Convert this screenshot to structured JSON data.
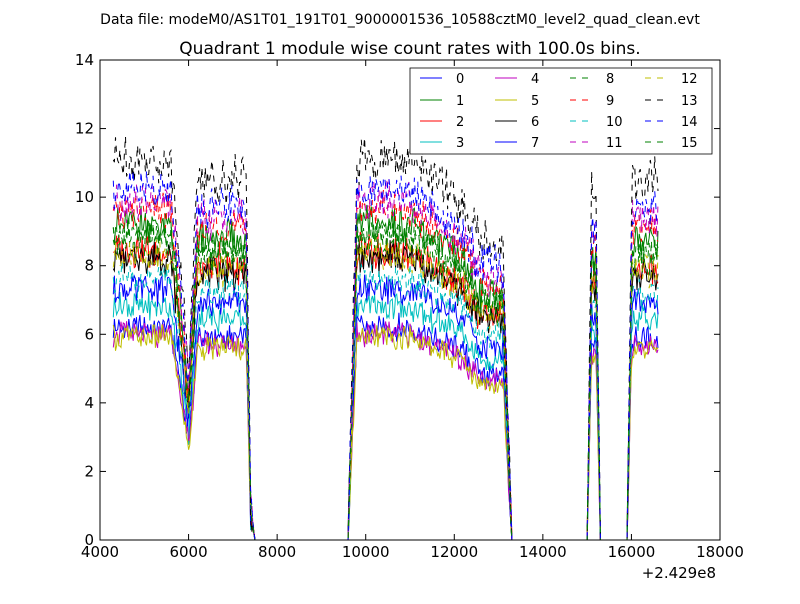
{
  "figure": {
    "suptitle": "Data file: modeM0/AS1T01_191T01_9000001536_10588cztM0_level2_quad_clean.evt",
    "title": "Quadrant 1 module wise count rates with 100.0s bins.",
    "x_offset_label": "+2.429e8"
  },
  "chart_data": {
    "type": "line",
    "title": "Quadrant 1 module wise count rates with 100.0s bins.",
    "xlabel": "",
    "ylabel": "",
    "x_offset": "+2.429e8",
    "xlim": [
      4000,
      18000
    ],
    "ylim": [
      0,
      14
    ],
    "x_ticks": [
      4000,
      6000,
      8000,
      10000,
      12000,
      14000,
      16000,
      18000
    ],
    "y_ticks": [
      0,
      2,
      4,
      6,
      8,
      10,
      12,
      14
    ],
    "grid": false,
    "legend_position": "top-right",
    "legend_columns": 4,
    "segments": [
      [
        4300,
        7600
      ],
      [
        9600,
        13300
      ],
      [
        15000,
        15300
      ],
      [
        15900,
        16600
      ]
    ],
    "base_x": [
      4300,
      4400,
      4500,
      4600,
      4700,
      4800,
      4900,
      5000,
      5100,
      5200,
      5300,
      5400,
      5500,
      5600,
      5700,
      5800,
      5900,
      6000,
      6100,
      6200,
      6300,
      6400,
      6500,
      6600,
      6700,
      6800,
      6900,
      7000,
      7100,
      7200,
      7300,
      7400,
      7500,
      7600,
      9600,
      9700,
      9800,
      9900,
      10000,
      10100,
      10200,
      10300,
      10400,
      10500,
      10600,
      10700,
      10800,
      10900,
      11000,
      11100,
      11200,
      11300,
      11400,
      11500,
      11600,
      11700,
      11800,
      11900,
      12000,
      12100,
      12200,
      12300,
      12400,
      12500,
      12600,
      12700,
      12800,
      12900,
      13000,
      13100,
      13200,
      13300,
      15000,
      15100,
      15200,
      15300,
      15900,
      16000,
      16100,
      16200,
      16300,
      16400,
      16500,
      16600
    ],
    "series": [
      {
        "name": "0",
        "color": "#0000ff",
        "style": "solid",
        "level": 6.2
      },
      {
        "name": "1",
        "color": "#008000",
        "style": "solid",
        "level": 9.2
      },
      {
        "name": "2",
        "color": "#ff0000",
        "style": "solid",
        "level": 8.4
      },
      {
        "name": "3",
        "color": "#00bfbf",
        "style": "solid",
        "level": 6.8
      },
      {
        "name": "4",
        "color": "#bf00bf",
        "style": "solid",
        "level": 6.0
      },
      {
        "name": "5",
        "color": "#bfbf00",
        "style": "solid",
        "level": 5.9
      },
      {
        "name": "6",
        "color": "#000000",
        "style": "solid",
        "level": 8.2
      },
      {
        "name": "7",
        "color": "#0000ff",
        "style": "solid",
        "level": 7.3
      },
      {
        "name": "8",
        "color": "#008000",
        "style": "dashed",
        "level": 8.7
      },
      {
        "name": "9",
        "color": "#ff0000",
        "style": "dashed",
        "level": 9.6
      },
      {
        "name": "10",
        "color": "#00bfbf",
        "style": "dashed",
        "level": 7.6
      },
      {
        "name": "11",
        "color": "#bf00bf",
        "style": "dashed",
        "level": 9.9
      },
      {
        "name": "12",
        "color": "#bfbf00",
        "style": "dashed",
        "level": 8.3
      },
      {
        "name": "13",
        "color": "#000000",
        "style": "dashed",
        "level": 11.1
      },
      {
        "name": "14",
        "color": "#0000ff",
        "style": "dashed",
        "level": 10.2
      },
      {
        "name": "15",
        "color": "#008000",
        "style": "dashed",
        "level": 8.9
      }
    ]
  }
}
